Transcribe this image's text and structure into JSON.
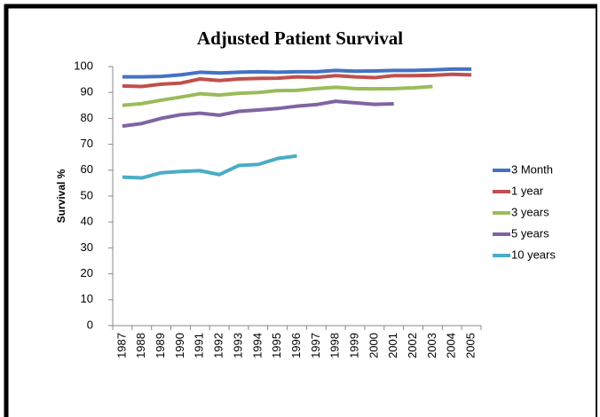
{
  "chart_data": {
    "type": "line",
    "title": "Adjusted Patient Survival",
    "y_label": "Survival %",
    "categories": [
      "1987",
      "1988",
      "1989",
      "1990",
      "1991",
      "1992",
      "1993",
      "1994",
      "1995",
      "1996",
      "1997",
      "1998",
      "1999",
      "2000",
      "2001",
      "2002",
      "2003",
      "2004",
      "2005"
    ],
    "series": [
      {
        "name": "3 Month",
        "color": "#4472c4",
        "values": [
          96,
          96,
          96.2,
          96.8,
          97.8,
          97.5,
          97.8,
          98,
          97.8,
          98,
          98,
          98.5,
          98.2,
          98.3,
          98.5,
          98.5,
          98.7,
          99,
          99
        ]
      },
      {
        "name": "1 year",
        "color": "#c0504d",
        "values": [
          92.5,
          92.3,
          93.2,
          93.6,
          95.2,
          94.6,
          95.2,
          95.4,
          95.5,
          96,
          95.8,
          96.5,
          96,
          95.7,
          96.5,
          96.5,
          96.6,
          97,
          96.8
        ]
      },
      {
        "name": "3 years",
        "color": "#9bbb59",
        "values": [
          85,
          85.7,
          87,
          88.2,
          89.5,
          89,
          89.7,
          90,
          90.7,
          90.8,
          91.5,
          92,
          91.5,
          91.4,
          91.5,
          91.8,
          92.3,
          null,
          null
        ]
      },
      {
        "name": "5 years",
        "color": "#8064a2",
        "values": [
          77,
          78,
          80,
          81.4,
          82,
          81.2,
          82.7,
          83.2,
          83.8,
          84.7,
          85.3,
          86.6,
          86,
          85.4,
          85.6,
          null,
          null,
          null,
          null
        ]
      },
      {
        "name": "10 years",
        "color": "#4bacc6",
        "values": [
          57.3,
          57,
          59,
          59.5,
          59.8,
          58.3,
          61.8,
          62.2,
          64.5,
          65.5,
          null,
          null,
          null,
          null,
          null,
          null,
          null,
          null,
          null
        ]
      }
    ],
    "ylim": [
      0,
      100
    ],
    "yticks": [
      0,
      10,
      20,
      30,
      40,
      50,
      60,
      70,
      80,
      90,
      100
    ],
    "grid": false,
    "legend": "right"
  }
}
